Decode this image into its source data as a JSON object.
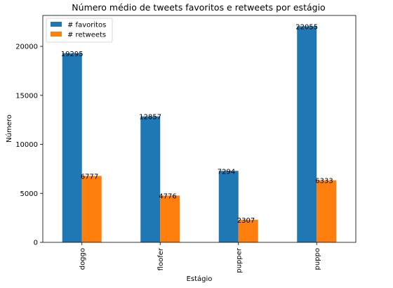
{
  "chart_data": {
    "type": "bar",
    "title": "Número médio de tweets favoritos e retweets por estágio",
    "xlabel": "Estágio",
    "ylabel": "Número",
    "categories": [
      "doggo",
      "floofer",
      "pupper",
      "puppo"
    ],
    "series": [
      {
        "name": "# favoritos",
        "values": [
          19295,
          12857,
          7294,
          22055
        ],
        "color": "#1f77b4"
      },
      {
        "name": "# retweets",
        "values": [
          6777,
          4776,
          2307,
          6333
        ],
        "color": "#ff7f0e"
      }
    ],
    "ylim": [
      0,
      23157
    ],
    "yticks": [
      0,
      5000,
      10000,
      15000,
      20000
    ],
    "grid": false,
    "legend_position": "top-left"
  }
}
